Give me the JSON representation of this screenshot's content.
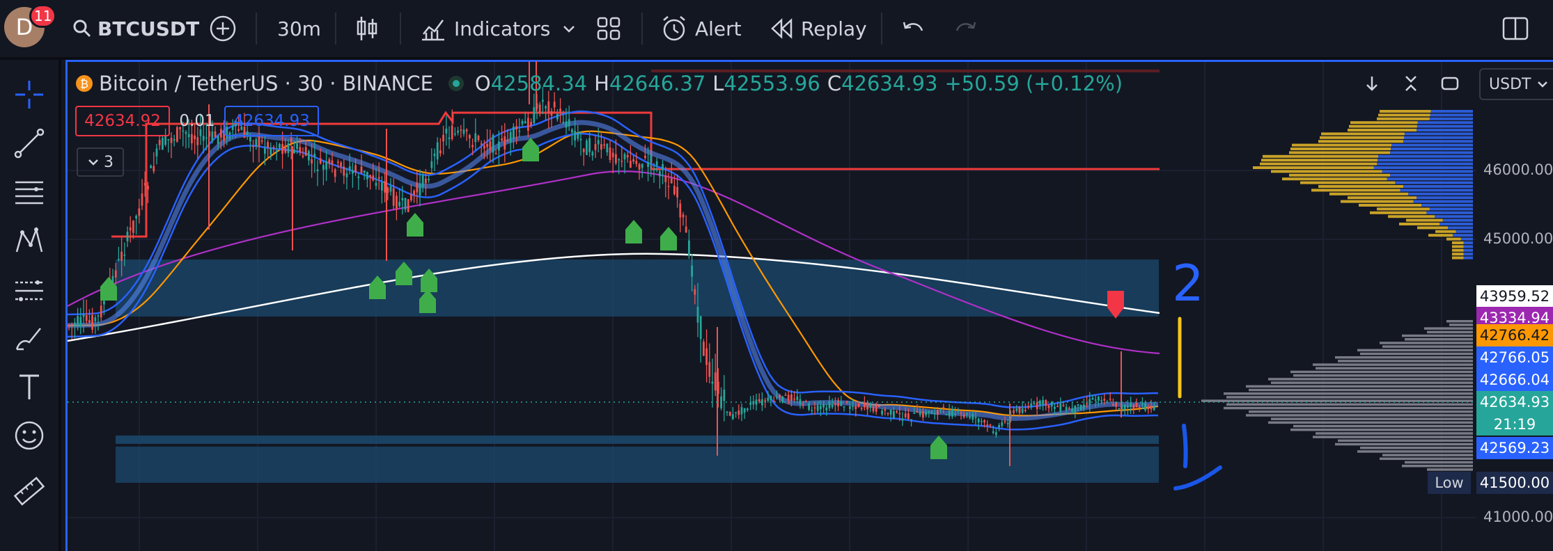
{
  "toolbar": {
    "avatar_letter": "D",
    "notifications": "11",
    "symbol": "BTCUSDT",
    "interval": "30m",
    "indicators": "Indicators",
    "alert": "Alert",
    "replay": "Replay"
  },
  "legend": {
    "title": "Bitcoin / TetherUS · 30 · BINANCE",
    "o_key": "O",
    "o_val": "42584.34",
    "h_key": "H",
    "h_val": "42646.37",
    "l_key": "L",
    "l_val": "42553.96",
    "c_key": "C",
    "c_val": "42634.93",
    "change": "+50.59 (+0.12%)"
  },
  "trade": {
    "sell": "42634.92",
    "spread": "0.01",
    "buy": "42634.93"
  },
  "indicators_count": "3",
  "currency": "USDT",
  "price_axis": {
    "ticks": [
      "46000.00",
      "45000.00",
      "41000.00"
    ],
    "labels": [
      {
        "value": "43959.52",
        "bg": "#ffffff",
        "fg": "#131722"
      },
      {
        "value": "43334.94",
        "bg": "#9c27b0",
        "fg": "#ffffff"
      },
      {
        "value": "42766.42",
        "bg": "#ff9800",
        "fg": "#131722"
      },
      {
        "value": "42766.05",
        "bg": "#2962ff",
        "fg": "#ffffff"
      },
      {
        "value": "42666.04",
        "bg": "#2962ff",
        "fg": "#ffffff"
      },
      {
        "value": "42634.93",
        "bg": "#26a69a",
        "fg": "#ffffff"
      },
      {
        "value": "21:19",
        "bg": "#26a69a",
        "fg": "#ffffff"
      },
      {
        "value": "42569.23",
        "bg": "#2962ff",
        "fg": "#ffffff"
      }
    ],
    "low_label": "Low",
    "low_value": "41500.00"
  },
  "annotations": {
    "zone_top": "2",
    "zone_bottom": "1"
  },
  "colors": {
    "up": "#26a69a",
    "down": "#ef5350",
    "accent": "#2962ff"
  }
}
